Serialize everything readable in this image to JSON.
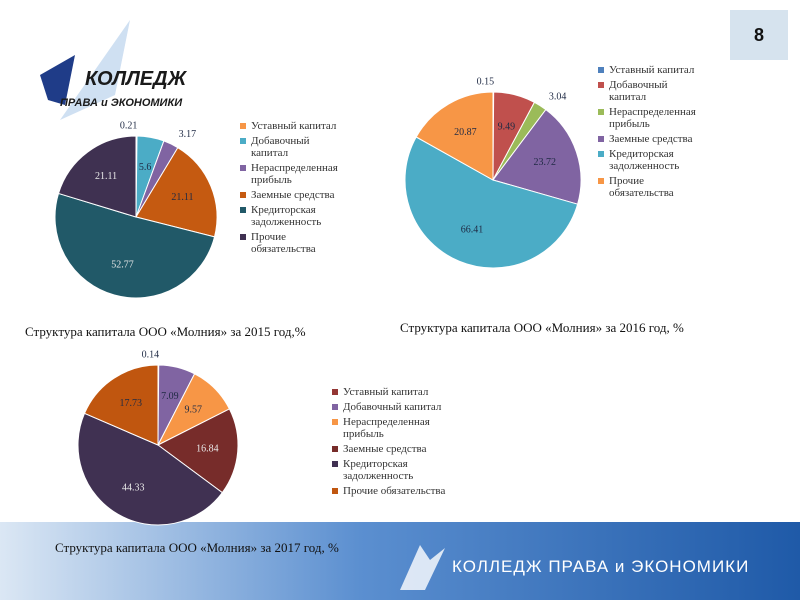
{
  "slide_number": "8",
  "logo": {
    "title": "КОЛЛЕДЖ",
    "subtitle": "ПРАВА и ЭКОНОМИКИ"
  },
  "footer": "КОЛЛЕДЖ ПРАВА и ЭКОНОМИКИ",
  "chart_data": [
    {
      "type": "pie",
      "title": "Структура капитала ООО «Молния» за 2015 год,%",
      "categories": [
        "Уставный капитал",
        "Добавочный капитал",
        "Нераспределенная прибыль",
        "Заемные средства",
        "Кредиторская задолженность",
        "Прочие обязательства"
      ],
      "values": [
        0.21,
        5.6,
        3.17,
        21.11,
        52.77,
        21.11
      ],
      "colors": [
        "#f79646",
        "#4bacc6",
        "#8064a2",
        "#c55a11",
        "#215968",
        "#3f3151"
      ]
    },
    {
      "type": "pie",
      "title": "Структура капитала ООО «Молния» за 2016 год, %",
      "categories": [
        "Уставный капитал",
        "Добавочный капитал",
        "Нераспределенная прибыль",
        "Заемные средства",
        "Кредиторская задолженность",
        "Прочие обязательства"
      ],
      "values": [
        0.15,
        9.49,
        3.04,
        23.72,
        66.41,
        20.87
      ],
      "colors": [
        "#4f81bd",
        "#c0504d",
        "#9bbb59",
        "#8064a2",
        "#4bacc6",
        "#f79646"
      ]
    },
    {
      "type": "pie",
      "title": "Структура капитала ООО «Молния» за 2017 год, %",
      "categories": [
        "Уставный капитал",
        "Добавочный капитал",
        "Нераспределенная прибыль",
        "Заемные средства",
        "Кредиторская задолженность",
        "Прочие обязательства"
      ],
      "values": [
        0.14,
        7.09,
        9.57,
        16.84,
        44.33,
        17.73
      ],
      "colors": [
        "#943634",
        "#8064a2",
        "#f79646",
        "#772c2a",
        "#403152",
        "#c0560f"
      ]
    }
  ]
}
